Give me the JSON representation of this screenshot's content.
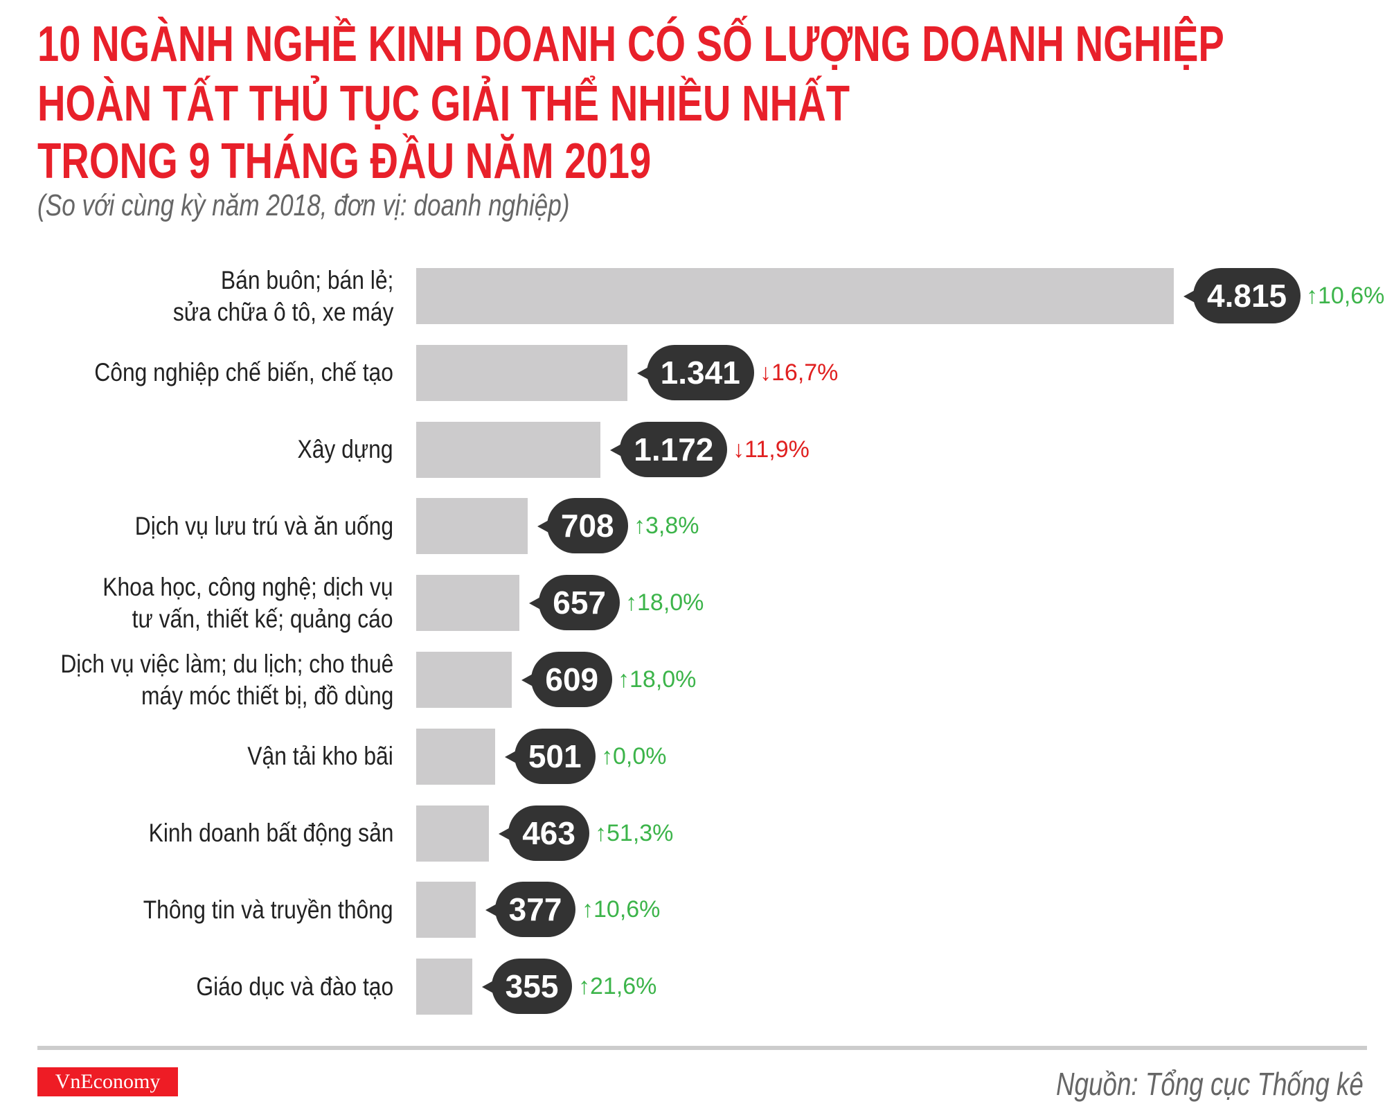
{
  "header": {
    "title_lines": [
      "10 NGÀNH NGHỀ KINH DOANH CÓ SỐ LƯỢNG DOANH NGHIỆP",
      "HOÀN TẤT THỦ TỤC GIẢI THỂ NHIỀU NHẤT",
      "TRONG 9 THÁNG ĐẦU NĂM 2019"
    ],
    "subtitle": "(So với cùng kỳ năm 2018, đơn vị: doanh nghiệp)"
  },
  "chart_data": {
    "type": "bar",
    "orientation": "horizontal",
    "title": "10 NGÀNH NGHỀ KINH DOANH CÓ SỐ LƯỢNG DOANH NGHIỆP HOÀN TẤT THỦ TỤC GIẢI THỂ NHIỀU NHẤT TRONG 9 THÁNG ĐẦU NĂM 2019",
    "subtitle": "(So với cùng kỳ năm 2018, đơn vị: doanh nghiệp)",
    "categories": [
      [
        "Bán buôn; bán lẻ;",
        "sửa chữa ô tô, xe máy"
      ],
      [
        "Công nghiệp chế biến, chế tạo"
      ],
      [
        "Xây dựng"
      ],
      [
        "Dịch vụ lưu trú và ăn uống"
      ],
      [
        "Khoa học, công nghệ; dịch vụ",
        "tư vấn, thiết kế; quảng cáo"
      ],
      [
        "Dịch vụ việc làm; du lịch; cho thuê",
        "máy móc thiết bị, đồ dùng"
      ],
      [
        "Vận tải kho bãi"
      ],
      [
        "Kinh doanh bất động sản"
      ],
      [
        "Thông tin và truyền thông"
      ],
      [
        "Giáo dục và đào tạo"
      ]
    ],
    "values": [
      4815,
      1341,
      1172,
      708,
      657,
      609,
      501,
      463,
      377,
      355
    ],
    "value_labels": [
      "4.815",
      "1.341",
      "1.172",
      "708",
      "657",
      "609",
      "501",
      "463",
      "377",
      "355"
    ],
    "changes": [
      {
        "text": "10,6%",
        "direction": "up"
      },
      {
        "text": "16,7%",
        "direction": "down"
      },
      {
        "text": "11,9%",
        "direction": "down"
      },
      {
        "text": "3,8%",
        "direction": "up"
      },
      {
        "text": "18,0%",
        "direction": "up"
      },
      {
        "text": "18,0%",
        "direction": "up"
      },
      {
        "text": "0,0%",
        "direction": "up"
      },
      {
        "text": "51,3%",
        "direction": "up"
      },
      {
        "text": "10,6%",
        "direction": "up"
      },
      {
        "text": "21,6%",
        "direction": "up"
      }
    ],
    "xlim": [
      0,
      4815
    ],
    "grid": false,
    "colors": {
      "bar": "#cccbcc",
      "bubble": "#333333",
      "up": "#3cb44a",
      "down": "#e02020"
    }
  },
  "footer": {
    "logo_text": "VnEconomy",
    "source": "Nguồn: Tổng cục Thống kê"
  },
  "colors": {
    "title": "#e8202a",
    "logo_bg": "#ee1c25"
  }
}
